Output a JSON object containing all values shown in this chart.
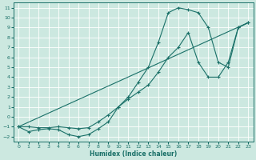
{
  "bg_color": "#cce8e0",
  "grid_color": "#b0d8d0",
  "line_color": "#1a7068",
  "xlabel": "Humidex (Indice chaleur)",
  "xlim": [
    -0.5,
    23.5
  ],
  "ylim": [
    -2.5,
    11.5
  ],
  "xticks": [
    0,
    1,
    2,
    3,
    4,
    5,
    6,
    7,
    8,
    9,
    10,
    11,
    12,
    13,
    14,
    15,
    16,
    17,
    18,
    19,
    20,
    21,
    22,
    23
  ],
  "yticks": [
    -2,
    -1,
    0,
    1,
    2,
    3,
    4,
    5,
    6,
    7,
    8,
    9,
    10,
    11
  ],
  "line1_x": [
    0,
    1,
    2,
    3,
    4,
    5,
    6,
    7,
    8,
    9,
    10,
    11,
    12,
    13,
    14,
    15,
    16,
    17,
    18,
    19,
    20,
    21,
    22,
    23
  ],
  "line1_y": [
    -1,
    -1.5,
    -1.3,
    -1.2,
    -1.3,
    -1.8,
    -2.0,
    -1.8,
    -1.2,
    -0.5,
    1.0,
    2.0,
    3.5,
    5.0,
    7.5,
    10.5,
    11.0,
    10.8,
    10.5,
    9.0,
    5.5,
    5.0,
    9.0,
    9.5
  ],
  "line2_x": [
    0,
    1,
    2,
    3,
    4,
    5,
    6,
    7,
    8,
    9,
    10,
    11,
    12,
    13,
    14,
    15,
    16,
    17,
    18,
    19,
    20,
    21,
    22,
    23
  ],
  "line2_y": [
    -1,
    -1.0,
    -1.1,
    -1.1,
    -1.0,
    -1.1,
    -1.2,
    -1.1,
    -0.5,
    0.2,
    1.0,
    1.8,
    2.5,
    3.2,
    4.5,
    6.0,
    7.0,
    8.5,
    5.5,
    4.0,
    4.0,
    5.5,
    9.0,
    9.5
  ],
  "line3_x": [
    0,
    23
  ],
  "line3_y": [
    -1,
    9.5
  ]
}
